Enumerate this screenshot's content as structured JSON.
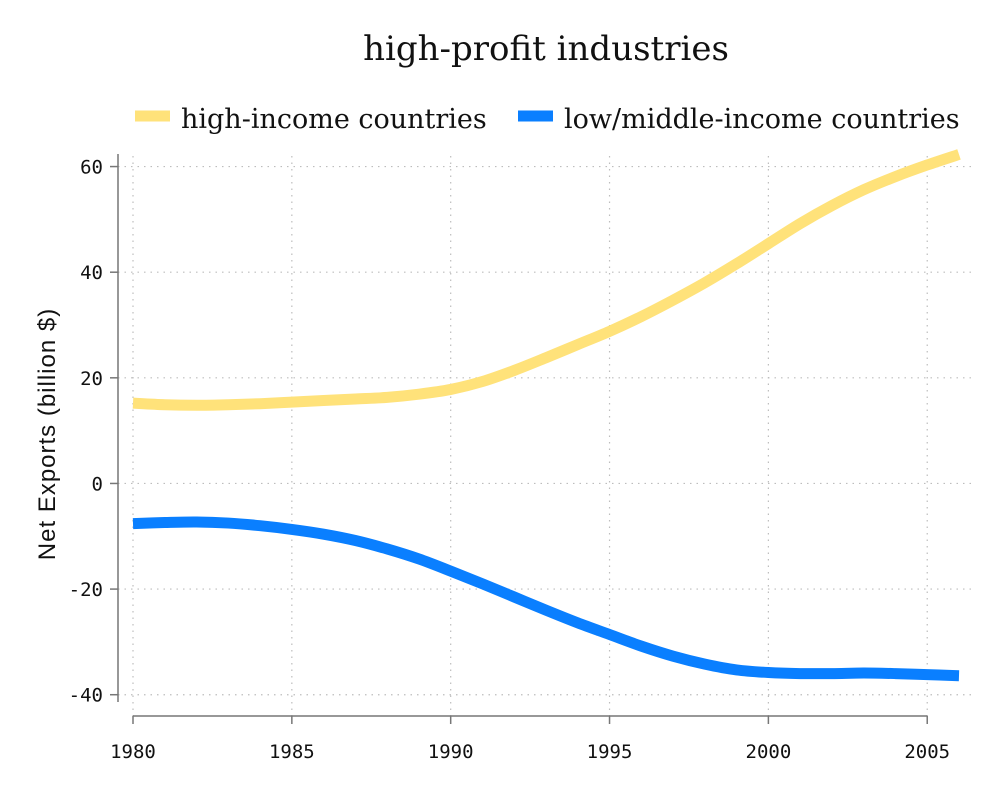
{
  "chart_data": {
    "type": "line",
    "title": "high-profit industries",
    "xlabel": "",
    "ylabel": "Net Exports (billion $)",
    "xlim": [
      1980,
      2006
    ],
    "ylim": [
      -41,
      62
    ],
    "xticks": [
      1980,
      1985,
      1990,
      1995,
      2000,
      2005
    ],
    "yticks": [
      -40,
      -20,
      0,
      20,
      40,
      60
    ],
    "grid": true,
    "legend_position": "top",
    "x": [
      1980,
      1981,
      1982,
      1983,
      1984,
      1985,
      1986,
      1987,
      1988,
      1989,
      1990,
      1991,
      1992,
      1993,
      1994,
      1995,
      1996,
      1997,
      1998,
      1999,
      2000,
      2001,
      2002,
      2003,
      2004,
      2005,
      2006
    ],
    "series": [
      {
        "name": "high-income countries",
        "color": "#ffe27a",
        "values": [
          15.2,
          14.9,
          14.8,
          14.9,
          15.1,
          15.4,
          15.7,
          16.0,
          16.3,
          16.9,
          17.8,
          19.3,
          21.4,
          23.8,
          26.3,
          28.8,
          31.6,
          34.7,
          38.0,
          41.6,
          45.4,
          49.2,
          52.6,
          55.6,
          58.1,
          60.3,
          62.3
        ]
      },
      {
        "name": "low/middle-income countries",
        "color": "#0a7fff",
        "values": [
          -7.6,
          -7.4,
          -7.3,
          -7.5,
          -8.0,
          -8.7,
          -9.6,
          -10.8,
          -12.4,
          -14.3,
          -16.6,
          -19.0,
          -21.5,
          -24.0,
          -26.4,
          -28.6,
          -30.8,
          -32.7,
          -34.2,
          -35.3,
          -35.8,
          -36.0,
          -36.0,
          -35.9,
          -36.0,
          -36.2,
          -36.4
        ]
      }
    ]
  }
}
